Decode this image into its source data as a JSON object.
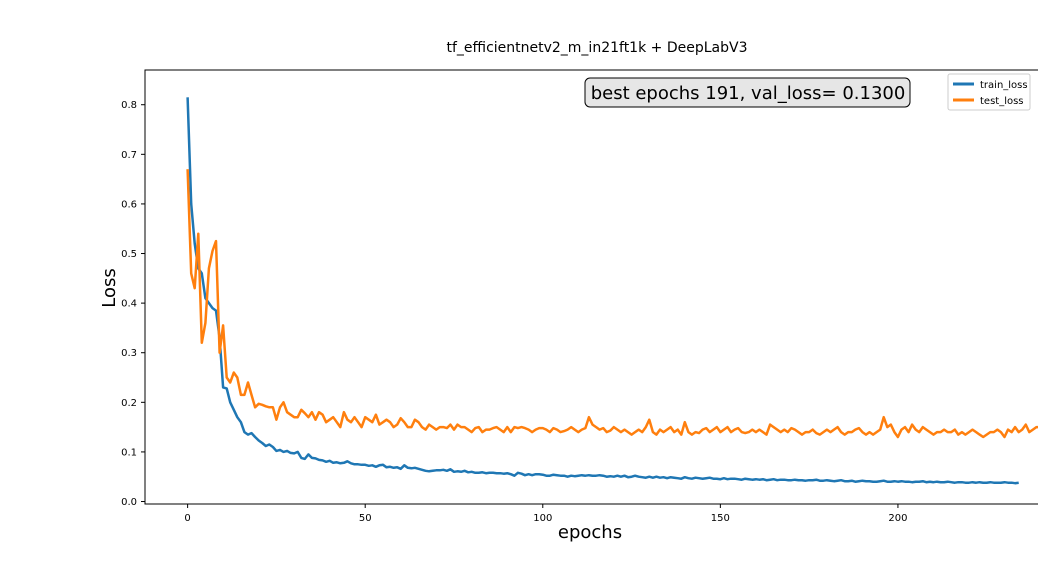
{
  "chart_data": {
    "type": "line",
    "title": "tf_efficientnetv2_m_in21ft1k + DeepLabV3",
    "xlabel": "epochs",
    "ylabel": "Loss",
    "xlim": [
      -12,
      240
    ],
    "ylim": [
      -0.005,
      0.87
    ],
    "xticks": [
      0,
      50,
      100,
      150,
      200
    ],
    "yticks": [
      0.0,
      0.1,
      0.2,
      0.3,
      0.4,
      0.5,
      0.6,
      0.7,
      0.8
    ],
    "grid": false,
    "legend_position": "upper-right",
    "annotation": "best epochs 191, val_loss= 0.1300",
    "series": [
      {
        "name": "train_loss",
        "color": "#1f77b4",
        "values": [
          0.815,
          0.6,
          0.52,
          0.47,
          0.46,
          0.41,
          0.4,
          0.39,
          0.385,
          0.33,
          0.23,
          0.228,
          0.2,
          0.185,
          0.17,
          0.16,
          0.14,
          0.135,
          0.138,
          0.13,
          0.123,
          0.118,
          0.112,
          0.115,
          0.11,
          0.102,
          0.104,
          0.1,
          0.102,
          0.098,
          0.097,
          0.1,
          0.088,
          0.086,
          0.095,
          0.088,
          0.087,
          0.084,
          0.083,
          0.08,
          0.082,
          0.078,
          0.079,
          0.077,
          0.078,
          0.081,
          0.077,
          0.075,
          0.075,
          0.074,
          0.074,
          0.072,
          0.073,
          0.07,
          0.073,
          0.074,
          0.069,
          0.07,
          0.068,
          0.069,
          0.066,
          0.073,
          0.068,
          0.067,
          0.068,
          0.066,
          0.064,
          0.062,
          0.061,
          0.062,
          0.063,
          0.063,
          0.064,
          0.062,
          0.065,
          0.06,
          0.061,
          0.06,
          0.062,
          0.059,
          0.06,
          0.058,
          0.058,
          0.059,
          0.057,
          0.058,
          0.058,
          0.057,
          0.057,
          0.056,
          0.057,
          0.055,
          0.052,
          0.058,
          0.056,
          0.053,
          0.055,
          0.053,
          0.055,
          0.055,
          0.054,
          0.052,
          0.052,
          0.054,
          0.053,
          0.052,
          0.052,
          0.05,
          0.052,
          0.051,
          0.052,
          0.053,
          0.052,
          0.053,
          0.052,
          0.052,
          0.053,
          0.052,
          0.05,
          0.051,
          0.05,
          0.052,
          0.05,
          0.052,
          0.049,
          0.05,
          0.052,
          0.05,
          0.049,
          0.048,
          0.05,
          0.048,
          0.05,
          0.048,
          0.049,
          0.047,
          0.049,
          0.048,
          0.047,
          0.046,
          0.049,
          0.047,
          0.046,
          0.048,
          0.047,
          0.046,
          0.047,
          0.048,
          0.046,
          0.046,
          0.045,
          0.047,
          0.045,
          0.046,
          0.046,
          0.045,
          0.044,
          0.046,
          0.045,
          0.044,
          0.045,
          0.044,
          0.045,
          0.043,
          0.044,
          0.045,
          0.043,
          0.044,
          0.044,
          0.043,
          0.043,
          0.044,
          0.043,
          0.043,
          0.042,
          0.043,
          0.043,
          0.044,
          0.042,
          0.042,
          0.043,
          0.042,
          0.041,
          0.042,
          0.043,
          0.041,
          0.041,
          0.042,
          0.04,
          0.041,
          0.042,
          0.041,
          0.041,
          0.04,
          0.04,
          0.041,
          0.042,
          0.04,
          0.04,
          0.041,
          0.04,
          0.041,
          0.04,
          0.04,
          0.039,
          0.04,
          0.04,
          0.041,
          0.039,
          0.04,
          0.039,
          0.04,
          0.039,
          0.039,
          0.04,
          0.039,
          0.038,
          0.039,
          0.039,
          0.038,
          0.038,
          0.039,
          0.038,
          0.039,
          0.038,
          0.038,
          0.039,
          0.038,
          0.038,
          0.038,
          0.039,
          0.038,
          0.038,
          0.037,
          0.038
        ]
      },
      {
        "name": "test_loss",
        "color": "#ff7f0e",
        "values": [
          0.67,
          0.46,
          0.43,
          0.54,
          0.32,
          0.36,
          0.47,
          0.505,
          0.525,
          0.3,
          0.355,
          0.25,
          0.24,
          0.26,
          0.25,
          0.215,
          0.215,
          0.24,
          0.215,
          0.19,
          0.197,
          0.195,
          0.192,
          0.19,
          0.19,
          0.165,
          0.19,
          0.2,
          0.18,
          0.175,
          0.17,
          0.17,
          0.185,
          0.178,
          0.17,
          0.18,
          0.165,
          0.18,
          0.175,
          0.16,
          0.165,
          0.17,
          0.16,
          0.15,
          0.18,
          0.165,
          0.16,
          0.17,
          0.16,
          0.15,
          0.17,
          0.165,
          0.16,
          0.175,
          0.155,
          0.16,
          0.165,
          0.16,
          0.15,
          0.155,
          0.168,
          0.16,
          0.15,
          0.15,
          0.165,
          0.16,
          0.15,
          0.145,
          0.155,
          0.15,
          0.145,
          0.15,
          0.15,
          0.148,
          0.155,
          0.145,
          0.155,
          0.15,
          0.15,
          0.145,
          0.14,
          0.148,
          0.15,
          0.14,
          0.145,
          0.145,
          0.148,
          0.15,
          0.145,
          0.14,
          0.15,
          0.14,
          0.15,
          0.148,
          0.15,
          0.148,
          0.145,
          0.14,
          0.145,
          0.148,
          0.148,
          0.145,
          0.14,
          0.148,
          0.145,
          0.14,
          0.142,
          0.145,
          0.15,
          0.145,
          0.14,
          0.145,
          0.148,
          0.17,
          0.155,
          0.15,
          0.145,
          0.148,
          0.14,
          0.143,
          0.15,
          0.145,
          0.14,
          0.145,
          0.14,
          0.135,
          0.14,
          0.145,
          0.14,
          0.15,
          0.165,
          0.14,
          0.135,
          0.145,
          0.14,
          0.145,
          0.15,
          0.14,
          0.145,
          0.135,
          0.16,
          0.14,
          0.135,
          0.14,
          0.138,
          0.145,
          0.148,
          0.14,
          0.145,
          0.15,
          0.14,
          0.145,
          0.15,
          0.14,
          0.145,
          0.148,
          0.14,
          0.138,
          0.14,
          0.145,
          0.14,
          0.145,
          0.14,
          0.135,
          0.155,
          0.15,
          0.145,
          0.14,
          0.145,
          0.14,
          0.148,
          0.145,
          0.14,
          0.135,
          0.14,
          0.14,
          0.145,
          0.138,
          0.135,
          0.14,
          0.145,
          0.14,
          0.145,
          0.15,
          0.14,
          0.135,
          0.14,
          0.14,
          0.145,
          0.148,
          0.14,
          0.135,
          0.14,
          0.135,
          0.14,
          0.145,
          0.17,
          0.15,
          0.155,
          0.14,
          0.13,
          0.145,
          0.15,
          0.14,
          0.155,
          0.145,
          0.14,
          0.15,
          0.145,
          0.14,
          0.135,
          0.14,
          0.14,
          0.145,
          0.14,
          0.14,
          0.145,
          0.135,
          0.14,
          0.135,
          0.14,
          0.145,
          0.14,
          0.135,
          0.13,
          0.135,
          0.14,
          0.14,
          0.145,
          0.14,
          0.13,
          0.145,
          0.14,
          0.15,
          0.14,
          0.145,
          0.155,
          0.14,
          0.145,
          0.15,
          0.15
        ]
      }
    ]
  }
}
